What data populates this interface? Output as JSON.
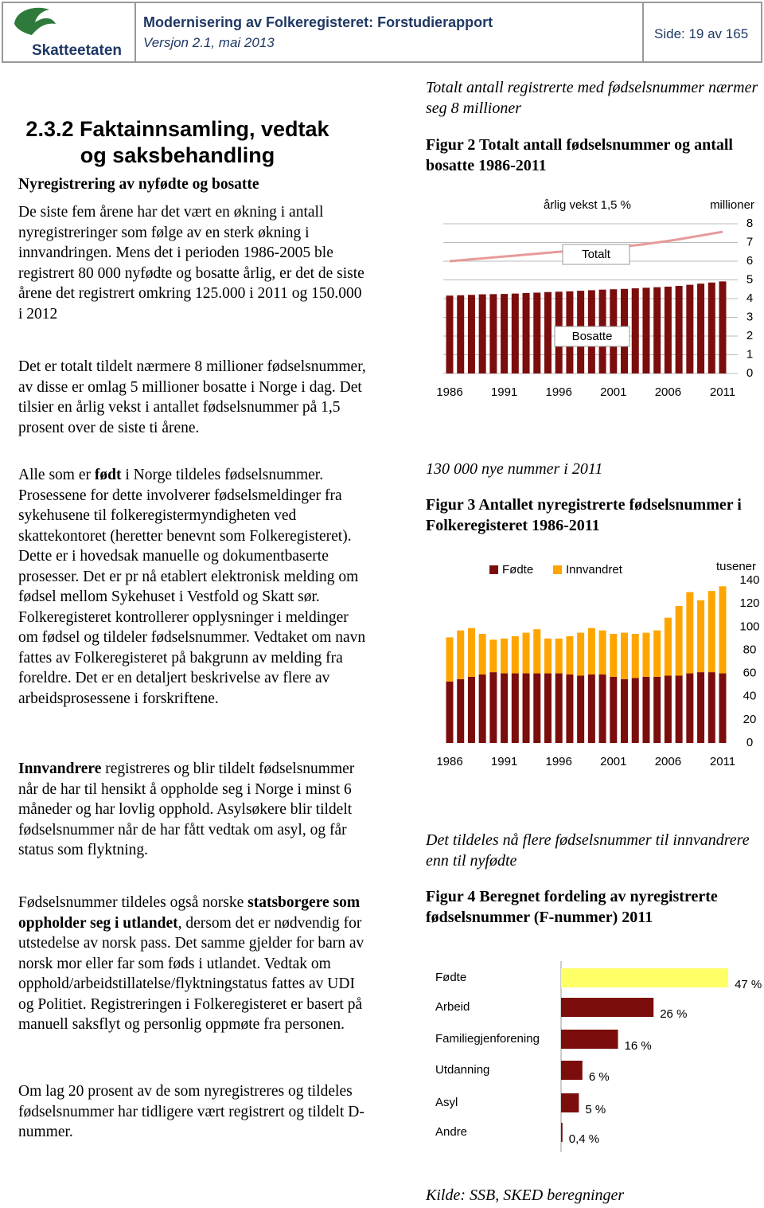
{
  "header": {
    "logo_text": "Skatteetaten",
    "title": "Modernisering av Folkeregisteret: Forstudierapport",
    "version": "Versjon 2.1, mai 2013",
    "page": "Side: 19 av 165"
  },
  "left": {
    "heading": "2.3.2 Faktainnsamling, vedtak og saksbehandling",
    "subheading": "Nyregistrering av nyfødte og bosatte",
    "paragraphs": [
      [
        {
          "text": "De siste fem årene har det vært en økning i antall nyregistreringer som følge av en sterk økning i innvandringen. Mens det i perioden 1986-2005 ble registrert 80 000 nyfødte og bosatte årlig, er det de siste årene det registrert omkring 125.000 i 2011 og 150.000 i 2012"
        }
      ],
      [
        {
          "text": "Det er totalt tildelt nærmere 8 millioner fødselsnummer, av disse er omlag 5 millioner bosatte i Norge i dag. Det tilsier en årlig vekst i antallet fødselsnummer på 1,5 prosent over de siste ti årene."
        }
      ],
      [
        {
          "text": "Alle som er "
        },
        {
          "text": "født",
          "bold": true
        },
        {
          "text": " i Norge tildeles fødselsnummer. Prosessene for dette involverer fødselsmeldinger fra sykehusene til folkeregistermyndigheten ved skattekontoret (heretter benevnt som Folkeregisteret). Dette er i hovedsak manuelle og dokumentbaserte prosesser. Det er pr nå etablert elektronisk melding om fødsel mellom Sykehuset i Vestfold og Skatt sør. Folkeregisteret kontrollerer opplysninger i meldinger om fødsel og tildeler fødselsnummer. Vedtaket om navn fattes av Folkeregisteret på bakgrunn av melding fra foreldre. Det er en detaljert beskrivelse av flere av arbeidsprosessene i forskriftene."
        }
      ],
      [
        {
          "text": "Innvandrere",
          "bold": true
        },
        {
          "text": " registreres og blir tildelt fødselsnummer når de har til hensikt å oppholde seg i Norge i minst 6 måneder og har lovlig opphold. Asylsøkere blir tildelt fødselsnummer når de har fått vedtak om asyl, og får status som flyktning."
        }
      ],
      [
        {
          "text": "Fødselsnummer tildeles også norske "
        },
        {
          "text": "statsborgere som oppholder seg i utlandet",
          "bold": true
        },
        {
          "text": ", dersom det er nødvendig for utstedelse av norsk pass. Det samme gjelder for barn av norsk mor eller far som føds i utlandet. Vedtak om opphold/arbeidstillatelse/flyktningstatus fattes av UDI og Politiet. Registreringen i Folkeregisteret er basert på manuell saksflyt og personlig oppmøte fra personen."
        }
      ],
      [
        {
          "text": "Om lag 20 prosent av de som nyregistreres og tildeles fødselsnummer har tidligere vært registrert og tildelt D-nummer."
        }
      ]
    ]
  },
  "chart_data": [
    {
      "type": "bar_line",
      "headline": "Totalt antall registrerte med fødselsnummer nærmer seg 8 millioner",
      "title": "Figur 2 Totalt antall fødselsnummer og antall bosatte 1986-2011",
      "annotation": "årlig vekst 1,5 %",
      "y_label": "millioner",
      "categories": [
        "1986",
        null,
        null,
        null,
        null,
        "1991",
        null,
        null,
        null,
        null,
        "1996",
        null,
        null,
        null,
        null,
        "2001",
        null,
        null,
        null,
        null,
        "2006",
        null,
        null,
        null,
        null,
        "2011"
      ],
      "ylim": [
        0,
        8
      ],
      "yticks": [
        0,
        1,
        2,
        3,
        4,
        5,
        6,
        7,
        8
      ],
      "grid": true,
      "series": [
        {
          "name": "Totalt",
          "type": "line",
          "color": "#e89a9a",
          "values": [
            6.0,
            6.05,
            6.1,
            6.15,
            6.2,
            6.25,
            6.3,
            6.35,
            6.4,
            6.45,
            6.5,
            6.55,
            6.6,
            6.65,
            6.7,
            6.75,
            6.8,
            6.85,
            6.92,
            7.0,
            7.08,
            7.17,
            7.27,
            7.37,
            7.47,
            7.57
          ]
        },
        {
          "name": "Bosatte",
          "type": "bar",
          "color": "#7b0d0d",
          "values": [
            4.16,
            4.18,
            4.2,
            4.23,
            4.24,
            4.25,
            4.27,
            4.3,
            4.32,
            4.35,
            4.37,
            4.39,
            4.42,
            4.45,
            4.48,
            4.5,
            4.52,
            4.55,
            4.58,
            4.61,
            4.64,
            4.68,
            4.74,
            4.8,
            4.86,
            4.92
          ]
        }
      ]
    },
    {
      "type": "stacked_bar",
      "headline": "130 000 nye nummer i 2011",
      "title": "Figur 3 Antallet nyregistrerte fødselsnummer i Folkeregisteret 1986-2011",
      "y_label": "tusener",
      "categories": [
        "1986",
        null,
        null,
        null,
        null,
        "1991",
        null,
        null,
        null,
        null,
        "1996",
        null,
        null,
        null,
        null,
        "2001",
        null,
        null,
        null,
        null,
        "2006",
        null,
        null,
        null,
        null,
        "2011"
      ],
      "ylim": [
        0,
        140
      ],
      "yticks": [
        0,
        20,
        40,
        60,
        80,
        100,
        120,
        140
      ],
      "series": [
        {
          "name": "Fødte",
          "color": "#7b0d0d",
          "values": [
            53,
            55,
            57,
            59,
            61,
            60,
            60,
            60,
            60,
            60,
            60,
            59,
            58,
            59,
            59,
            57,
            55,
            56,
            57,
            57,
            58,
            58,
            60,
            61,
            61,
            60
          ]
        },
        {
          "name": "Innvandret",
          "color": "#ffa500",
          "values": [
            38,
            42,
            42,
            35,
            28,
            30,
            32,
            35,
            38,
            30,
            30,
            33,
            37,
            40,
            38,
            37,
            40,
            38,
            38,
            40,
            50,
            60,
            70,
            62,
            70,
            75
          ]
        }
      ]
    },
    {
      "type": "hbar",
      "headline": "Det tildeles nå flere fødselsnummer til innvandrere enn til nyfødte",
      "title": "Figur 4 Beregnet fordeling av nyregistrerte fødselsnummer (F-nummer) 2011",
      "categories": [
        "Fødte",
        "Arbeid",
        "Familiegjenforening",
        "Utdanning",
        "Asyl",
        "Andre"
      ],
      "values": [
        47,
        26,
        16,
        6,
        5,
        0.4
      ],
      "value_labels": [
        "47 %",
        "26 %",
        "16 %",
        "6 %",
        "5 %",
        "0,4 %"
      ],
      "colors": [
        "#ffff66",
        "#7b0d0d",
        "#7b0d0d",
        "#7b0d0d",
        "#7b0d0d",
        "#7b0d0d"
      ]
    }
  ],
  "source": "Kilde: SSB, SKED beregninger"
}
